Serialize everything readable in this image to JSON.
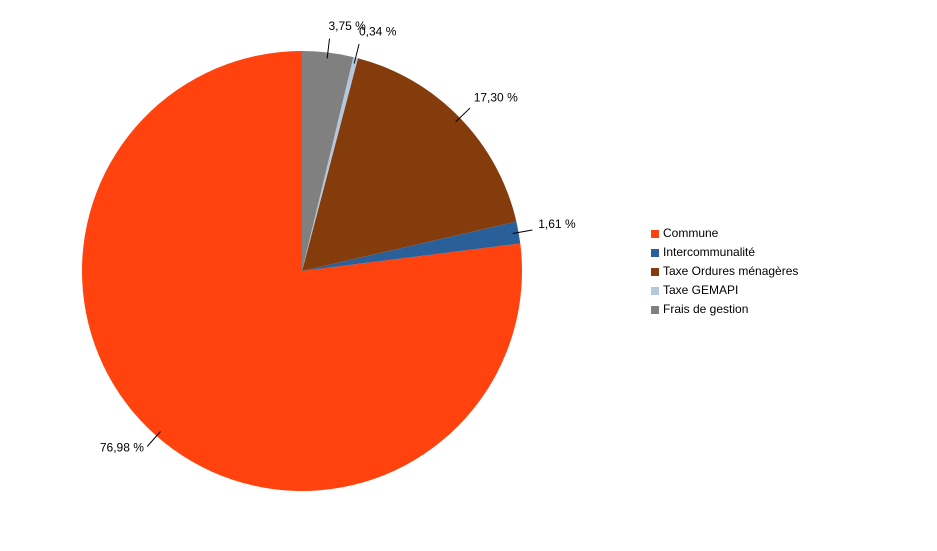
{
  "chart_data": {
    "type": "pie",
    "categories": [
      "Commune",
      "Intercommunalité",
      "Taxe Ordures ménagères",
      "Taxe GEMAPI",
      "Frais de gestion"
    ],
    "values": [
      76.98,
      1.61,
      17.3,
      0.34,
      3.75
    ],
    "value_labels": [
      "76,98 %",
      "1,61 %",
      "17,30 %",
      "0,34 %",
      "3,75 %"
    ],
    "colors": [
      "#ff420e",
      "#2a6099",
      "#843c0c",
      "#b4c7dc",
      "#808080"
    ],
    "legend": "right"
  }
}
